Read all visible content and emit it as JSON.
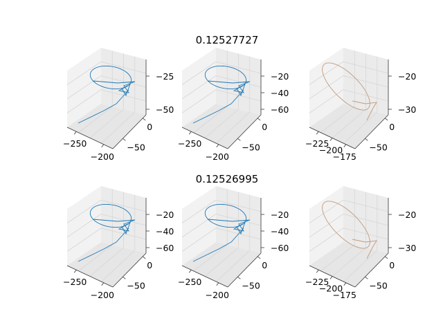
{
  "chart_data": {
    "type": "line3d",
    "layout": {
      "rows": 2,
      "cols": 3
    },
    "titles": [
      "0.12527727",
      "0.12526995"
    ],
    "colors": {
      "trace": "#1f77b4",
      "trace_alt": "#c49a7c"
    },
    "grid": true,
    "panels": [
      {
        "row": 0,
        "col": 0,
        "x_ticks": [
          "−250",
          "−200"
        ],
        "y_ticks": [
          "−50",
          "0"
        ],
        "z_ticks": [
          "−25",
          "−50"
        ],
        "color_key": "trace",
        "shape": "full"
      },
      {
        "row": 0,
        "col": 1,
        "x_ticks": [
          "−250",
          "−200"
        ],
        "y_ticks": [
          "−50",
          "0"
        ],
        "z_ticks": [
          "−20",
          "−40",
          "−60"
        ],
        "color_key": "trace",
        "shape": "full"
      },
      {
        "row": 0,
        "col": 2,
        "x_ticks": [
          "−225",
          "−200",
          "−175"
        ],
        "y_ticks": [
          "−50",
          "0"
        ],
        "z_ticks": [
          "−20",
          "−30"
        ],
        "color_key": "trace_alt",
        "shape": "loop"
      },
      {
        "row": 1,
        "col": 0,
        "x_ticks": [
          "−250",
          "−200"
        ],
        "y_ticks": [
          "−50",
          "0"
        ],
        "z_ticks": [
          "−20",
          "−40",
          "−60"
        ],
        "color_key": "trace",
        "shape": "full"
      },
      {
        "row": 1,
        "col": 1,
        "x_ticks": [
          "−250",
          "−200"
        ],
        "y_ticks": [
          "−50",
          "0"
        ],
        "z_ticks": [
          "−20",
          "−40",
          "−60"
        ],
        "color_key": "trace",
        "shape": "full"
      },
      {
        "row": 1,
        "col": 2,
        "x_ticks": [
          "−225",
          "−200",
          "−175"
        ],
        "y_ticks": [
          "−50",
          "0"
        ],
        "z_ticks": [
          "−20",
          "−30"
        ],
        "color_key": "trace_alt",
        "shape": "loop"
      }
    ]
  }
}
